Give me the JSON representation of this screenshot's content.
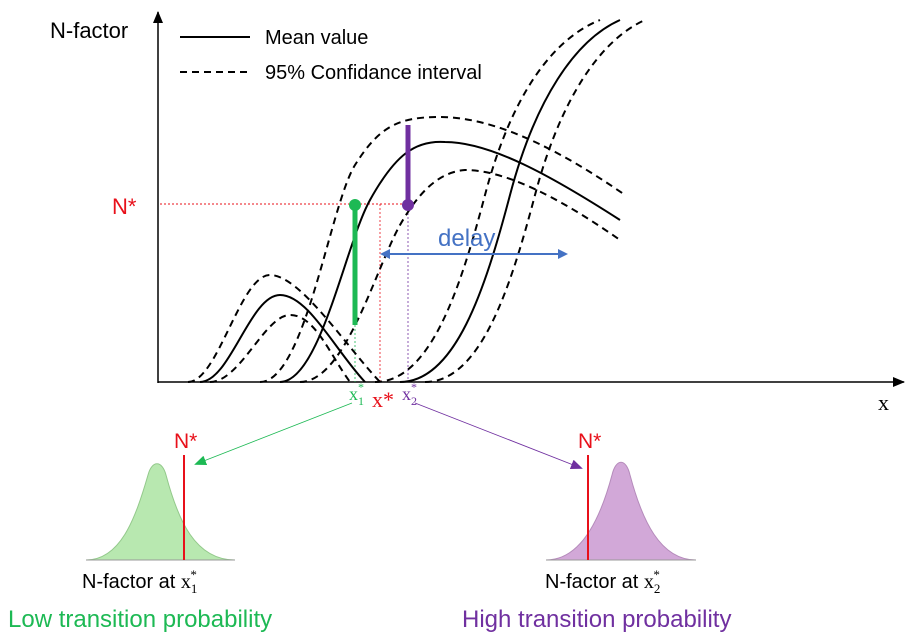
{
  "axes": {
    "y_label": "N-factor",
    "x_label": "x"
  },
  "legend": {
    "mean": "Mean value",
    "ci": "95% Confidance interval"
  },
  "markers": {
    "n_star": "N*",
    "x_star": "x*",
    "x1_base": "x",
    "x1_sub": "1",
    "x1_sup": "*",
    "x2_base": "x",
    "x2_sub": "2",
    "x2_sup": "*",
    "delay": "delay"
  },
  "left_panel": {
    "n_star": "N*",
    "caption_prefix": "N-factor at ",
    "caption_var": "x",
    "caption_sub": "1",
    "caption_sup": "*",
    "result": "Low transition probability"
  },
  "right_panel": {
    "n_star": "N*",
    "caption_prefix": "N-factor at ",
    "caption_var": "x",
    "caption_sub": "2",
    "caption_sup": "*",
    "result": "High transition probability"
  },
  "colors": {
    "green": "#1db954",
    "purple": "#7030a0",
    "red": "#e8101a",
    "blue": "#4472c4",
    "green_fill": "#b8e8b0",
    "purple_fill": "#d2a8d8"
  }
}
